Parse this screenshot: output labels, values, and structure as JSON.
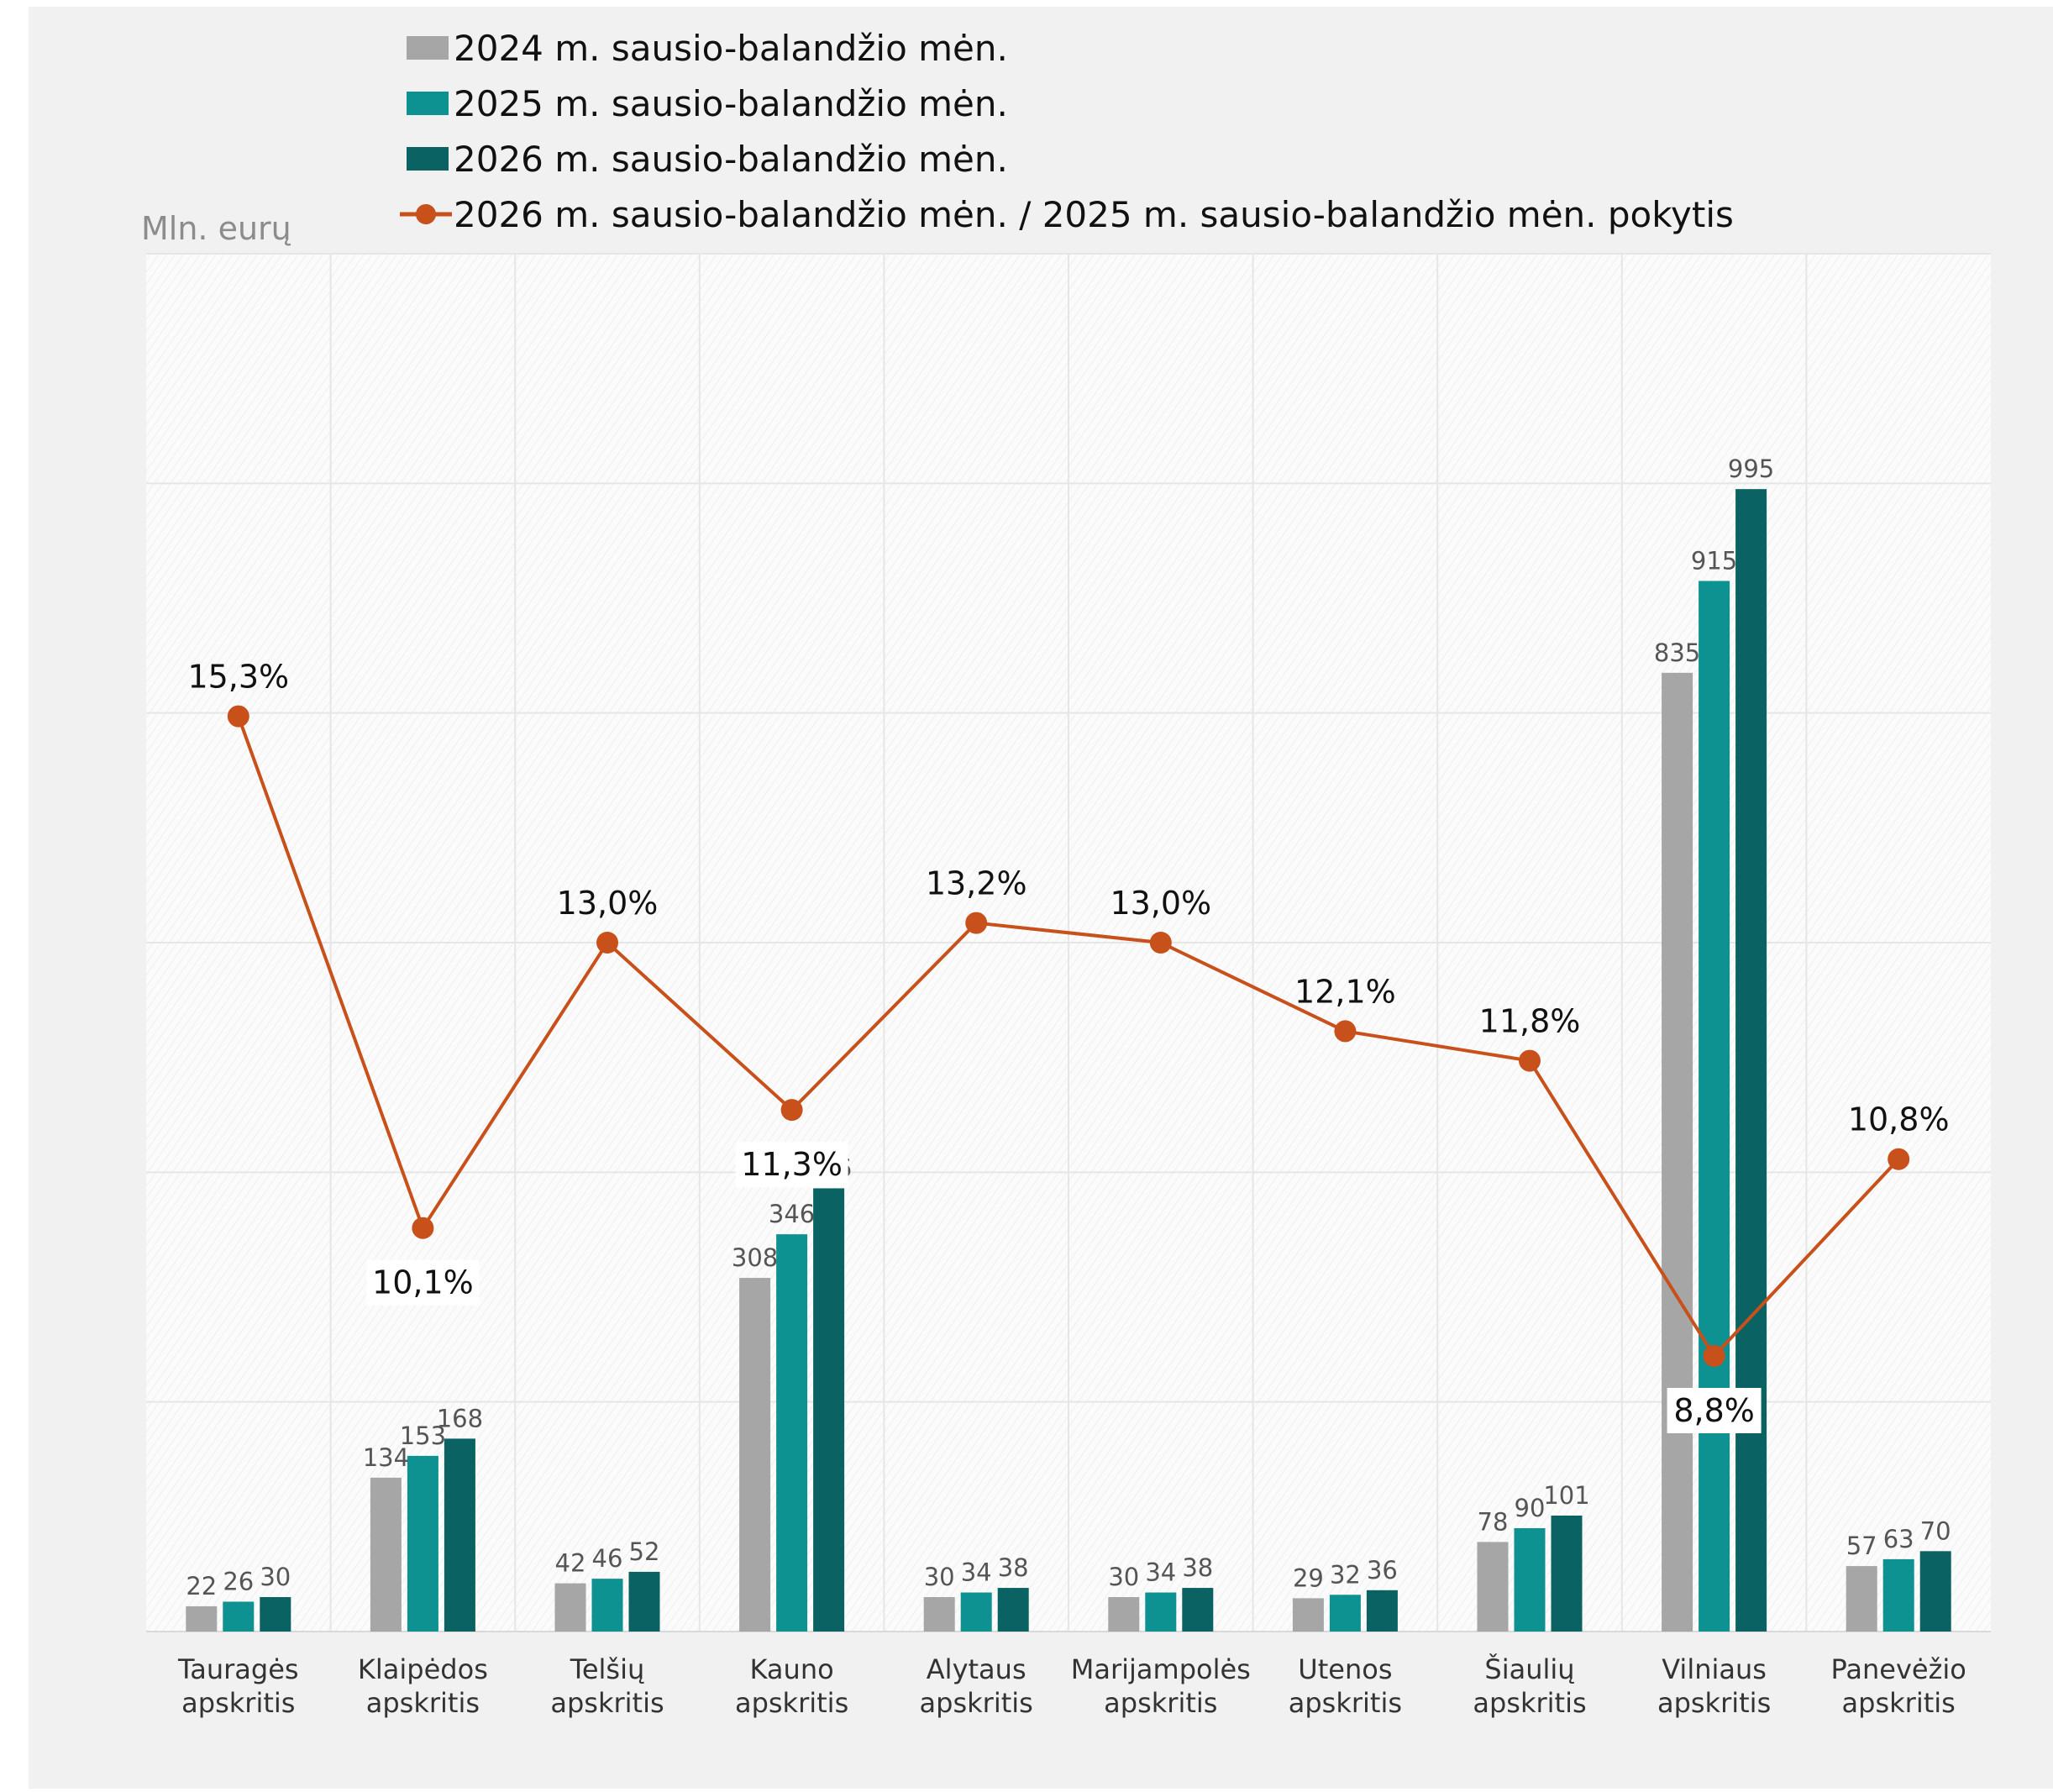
{
  "chart_data": {
    "type": "bar",
    "unit_label": "Mln. eurų",
    "categories": [
      [
        "Tauragės",
        "apskritis"
      ],
      [
        "Klaipėdos",
        "apskritis"
      ],
      [
        "Telšių",
        "apskritis"
      ],
      [
        "Kauno",
        "apskritis"
      ],
      [
        "Alytaus",
        "apskritis"
      ],
      [
        "Marijampolės",
        "apskritis"
      ],
      [
        "Utenos",
        "apskritis"
      ],
      [
        "Šiaulių",
        "apskritis"
      ],
      [
        "Vilniaus",
        "apskritis"
      ],
      [
        "Panevėžio",
        "apskritis"
      ]
    ],
    "series": [
      {
        "name": "2024 m. sausio-balandžio mėn.",
        "color": "#a6a6a6",
        "type": "bar",
        "values": [
          22,
          134,
          42,
          308,
          30,
          30,
          29,
          78,
          835,
          57
        ]
      },
      {
        "name": "2025 m. sausio-balandžio mėn.",
        "color": "#0e9191",
        "type": "bar",
        "values": [
          26,
          153,
          46,
          346,
          34,
          34,
          32,
          90,
          915,
          63
        ]
      },
      {
        "name": "2026 m. sausio-balandžio mėn.",
        "color": "#0a6262",
        "type": "bar",
        "values": [
          30,
          168,
          52,
          386,
          38,
          38,
          36,
          101,
          995,
          70
        ]
      },
      {
        "name": "2026 m. sausio-balandžio mėn. / 2025 m. sausio-balandžio mėn. pokytis",
        "color": "#c8501a",
        "type": "line",
        "values": [
          15.3,
          10.1,
          13.0,
          11.3,
          13.2,
          13.0,
          12.1,
          11.8,
          8.8,
          10.8
        ],
        "labels": [
          "15,3%",
          "10,1%",
          "13,0%",
          "11,3%",
          "13,2%",
          "13,0%",
          "12,1%",
          "11,8%",
          "8,8%",
          "10,8%"
        ]
      }
    ],
    "ylim": [
      0,
      1200
    ],
    "grid": true,
    "legend_position": "top"
  }
}
